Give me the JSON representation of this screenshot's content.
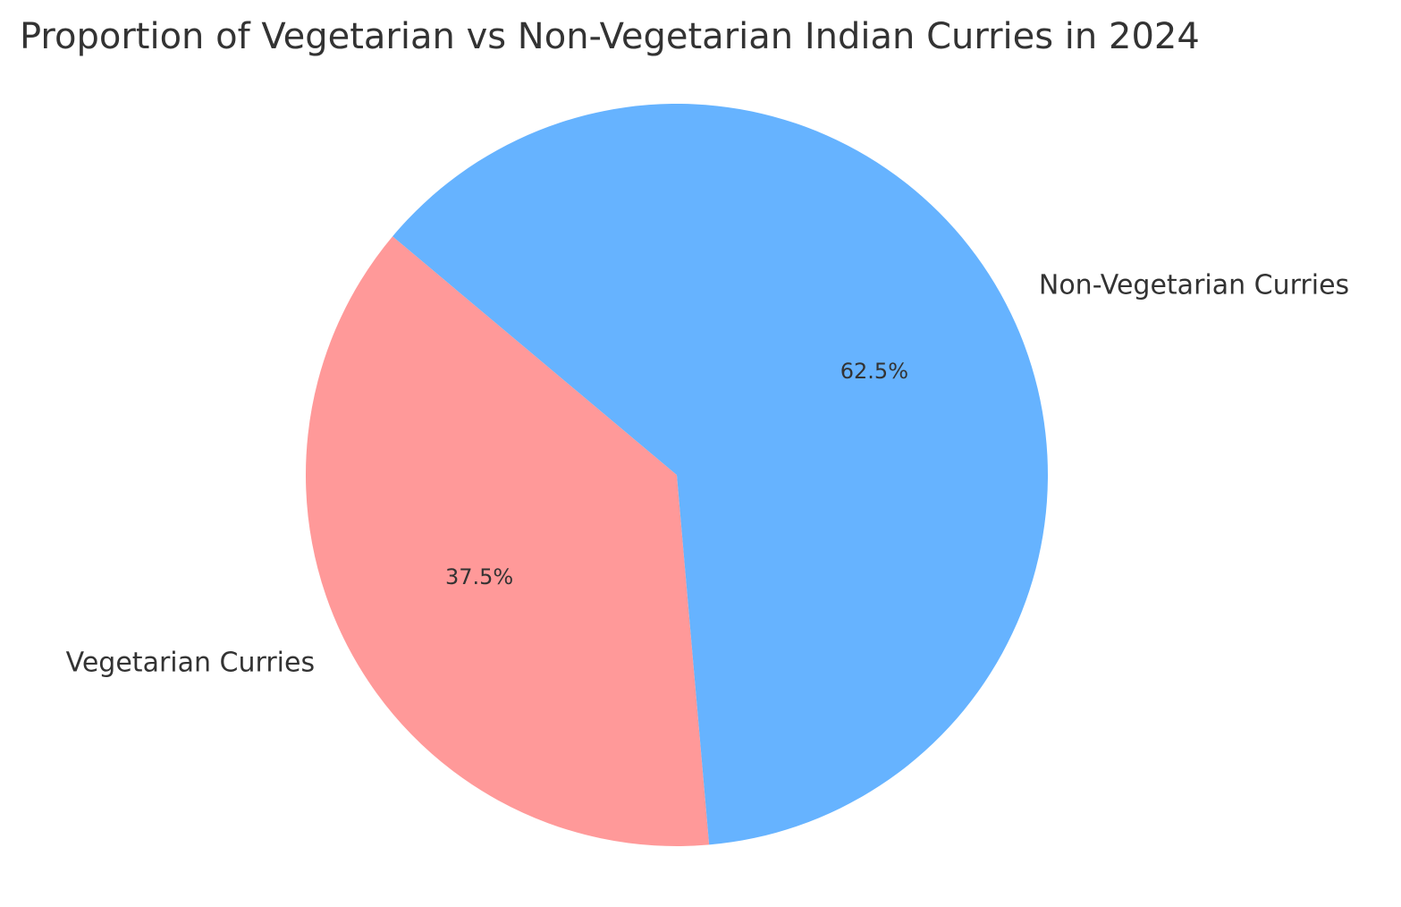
{
  "chart_data": {
    "type": "pie",
    "title": "Proportion of Vegetarian vs Non-Vegetarian Indian Curries in 2024",
    "slices": [
      {
        "label": "Vegetarian Curries",
        "value": 37.5,
        "pct_label": "37.5%",
        "color": "#ff9999"
      },
      {
        "label": "Non-Vegetarian Curries",
        "value": 62.5,
        "pct_label": "62.5%",
        "color": "#66b3ff"
      }
    ],
    "start_angle_deg": 140,
    "direction": "counterclockwise"
  }
}
